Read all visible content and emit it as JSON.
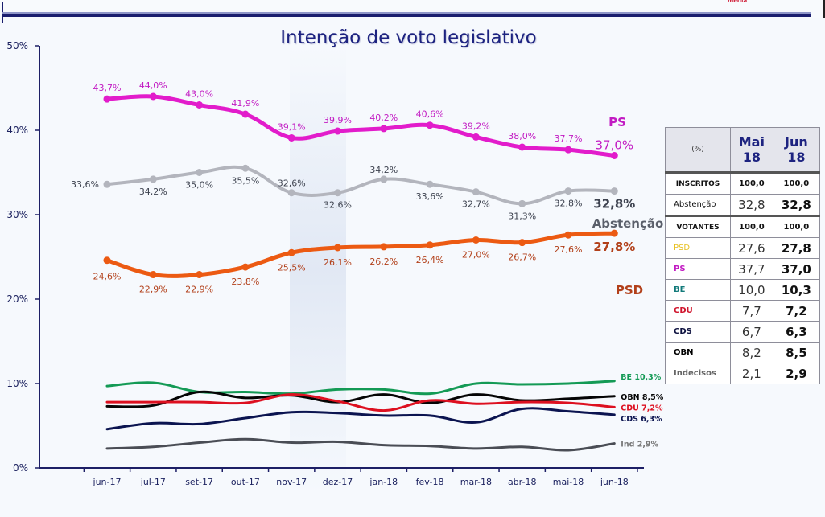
{
  "header": {
    "brand_text": "media"
  },
  "chart_data": {
    "type": "line",
    "title": "Intenção de voto legislativo",
    "xlabel": "",
    "ylabel": "",
    "ylim": [
      0,
      50
    ],
    "yticks": [
      "0%",
      "10%",
      "20%",
      "30%",
      "40%",
      "50%"
    ],
    "grid": false,
    "categories": [
      "jun-17",
      "jul-17",
      "set-17",
      "out-17",
      "nov-17",
      "dez-17",
      "jan-18",
      "fev-18",
      "mar-18",
      "abr-18",
      "mai-18",
      "jun-18"
    ],
    "series": [
      {
        "name": "PS",
        "color": "#e21ccb",
        "label_color": "#c21bc3",
        "values": [
          43.7,
          44.0,
          43.0,
          41.9,
          39.1,
          39.9,
          40.2,
          40.6,
          39.2,
          38.0,
          37.7,
          37.0
        ],
        "point_labels": [
          "43,7%",
          "44,0%",
          "43,0%",
          "41,9%",
          "39,1%",
          "39,9%",
          "40,2%",
          "40,6%",
          "39,2%",
          "38,0%",
          "37,7%",
          "37,0%"
        ],
        "end_label": "PS",
        "markers": true
      },
      {
        "name": "Abstenção",
        "color": "#b3b5bd",
        "label_color": "#3e4350",
        "values": [
          33.6,
          34.2,
          35.0,
          35.5,
          32.6,
          32.6,
          34.2,
          33.6,
          32.7,
          31.3,
          32.8,
          32.8
        ],
        "point_labels": [
          "33,6%",
          "34,2%",
          "35,0%",
          "35,5%",
          "32,6%",
          "32,6%",
          "34,2%",
          "33,6%",
          "32,7%",
          "31,3%",
          "32,8%",
          "32,8%"
        ],
        "end_label": "Abstenção",
        "markers": true
      },
      {
        "name": "PSD",
        "color": "#ec5a12",
        "label_color": "#b2401a",
        "values": [
          24.6,
          22.9,
          22.9,
          23.8,
          25.5,
          26.1,
          26.2,
          26.4,
          27.0,
          26.7,
          27.6,
          27.8
        ],
        "point_labels": [
          "24,6%",
          "22,9%",
          "22,9%",
          "23,8%",
          "25,5%",
          "26,1%",
          "26,2%",
          "26,4%",
          "27,0%",
          "26,7%",
          "27,6%",
          "27,8%"
        ],
        "end_label": "PSD",
        "markers": true
      },
      {
        "name": "BE",
        "color": "#149a55",
        "values": [
          9.7,
          10.1,
          9.0,
          9.0,
          8.8,
          9.3,
          9.3,
          8.8,
          10.0,
          9.9,
          10.0,
          10.3
        ],
        "end_label": "BE 10,3%",
        "markers": false
      },
      {
        "name": "OBN",
        "color": "#050505",
        "values": [
          7.3,
          7.4,
          9.0,
          8.3,
          8.6,
          7.8,
          8.7,
          7.7,
          8.7,
          8.0,
          8.2,
          8.5
        ],
        "end_label": "OBN 8,5%",
        "markers": false
      },
      {
        "name": "CDU",
        "color": "#dd1020",
        "values": [
          7.8,
          7.8,
          7.8,
          7.7,
          8.7,
          7.9,
          6.8,
          8.0,
          7.6,
          7.8,
          7.7,
          7.2
        ],
        "end_label": "CDU 7,2%",
        "markers": false
      },
      {
        "name": "CDS",
        "color": "#0b1450",
        "values": [
          4.6,
          5.3,
          5.2,
          5.9,
          6.6,
          6.5,
          6.2,
          6.2,
          5.4,
          7.0,
          6.7,
          6.3
        ],
        "end_label": "CDS 6,3%",
        "markers": false
      },
      {
        "name": "Ind",
        "color": "#4a4d55",
        "values": [
          2.3,
          2.5,
          3.0,
          3.4,
          3.0,
          3.1,
          2.7,
          2.6,
          2.3,
          2.5,
          2.1,
          2.9
        ],
        "end_label": "Ind 2,9%",
        "markers": false
      }
    ]
  },
  "summary_table": {
    "unit_header": "(%)",
    "col1_header": [
      "Mai",
      "18"
    ],
    "col2_header": [
      "Jun",
      "18"
    ],
    "rows": [
      {
        "label": "INSCRITOS",
        "mai": "100,0",
        "jun": "100,0",
        "kind": "section"
      },
      {
        "label": "Abstenção",
        "mai": "32,8",
        "jun": "32,8",
        "kind": "abst"
      },
      {
        "label": "VOTANTES",
        "mai": "100,0",
        "jun": "100,0",
        "kind": "section"
      },
      {
        "label": "PSD",
        "mai": "27,6",
        "jun": "27,8",
        "kind": "psd"
      },
      {
        "label": "PS",
        "mai": "37,7",
        "jun": "37,0",
        "kind": "ps"
      },
      {
        "label": "BE",
        "mai": "10,0",
        "jun": "10,3",
        "kind": "be"
      },
      {
        "label": "CDU",
        "mai": "7,7",
        "jun": "7,2",
        "kind": "cdu"
      },
      {
        "label": "CDS",
        "mai": "6,7",
        "jun": "6,3",
        "kind": "cds"
      },
      {
        "label": "OBN",
        "mai": "8,2",
        "jun": "8,5",
        "kind": "obn"
      },
      {
        "label": "Indecisos",
        "mai": "2,1",
        "jun": "2,9",
        "kind": "ind"
      }
    ]
  }
}
